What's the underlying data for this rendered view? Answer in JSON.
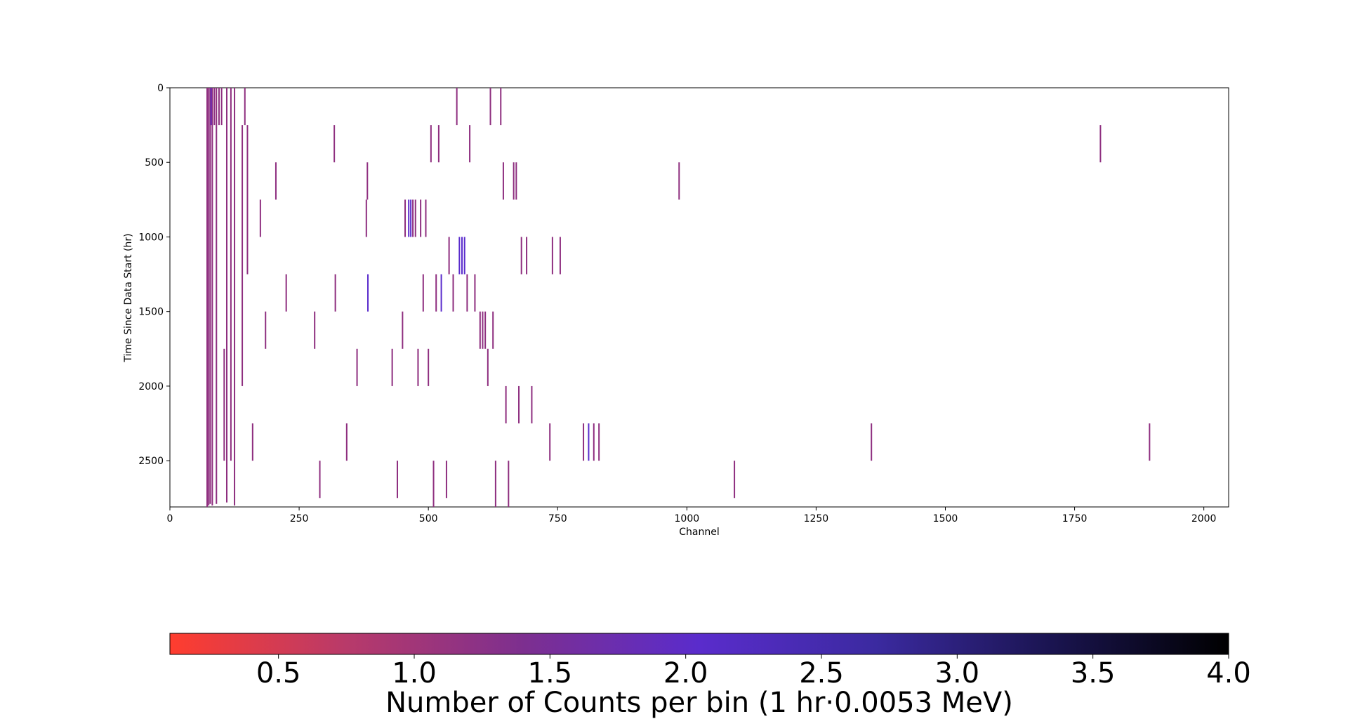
{
  "chart_data": {
    "type": "heatmap",
    "title": "",
    "xlabel": "Channel",
    "ylabel": "Time Since Data Start (hr)",
    "xlim": [
      0,
      2048
    ],
    "ylim": [
      0,
      2810
    ],
    "y_inverted": true,
    "x_ticks": [
      0,
      250,
      500,
      750,
      1000,
      1250,
      1500,
      1750,
      2000
    ],
    "y_ticks": [
      0,
      500,
      1000,
      1500,
      2000,
      2500
    ],
    "colorbar": {
      "label": "Number of Counts per bin (1 hr·0.0053 MeV)",
      "range": [
        0.1,
        4.0
      ],
      "ticks": [
        "0.5",
        "1.0",
        "1.5",
        "2.0",
        "2.5",
        "3.0",
        "3.5",
        "4.0"
      ],
      "tick_values": [
        0.5,
        1.0,
        1.5,
        2.0,
        2.5,
        3.0,
        3.5,
        4.0
      ],
      "colormap_stops": [
        "#ff3d2e",
        "#b83a6a",
        "#7d2f8f",
        "#5a2ccc",
        "#3b2aa0",
        "#1a1450",
        "#000000"
      ]
    },
    "count_color": "#8e2e7f",
    "dense_color": "#5a2ccc",
    "segments": [
      {
        "x": 72,
        "t": [
          0,
          2810
        ],
        "v": 1
      },
      {
        "x": 75,
        "t": [
          0,
          2800
        ],
        "v": 1
      },
      {
        "x": 78,
        "t": [
          0,
          2790
        ],
        "v": 1.2
      },
      {
        "x": 80,
        "t": [
          0,
          250
        ],
        "v": 1.5
      },
      {
        "x": 82,
        "t": [
          0,
          2800
        ],
        "v": 1
      },
      {
        "x": 86,
        "t": [
          0,
          250
        ],
        "v": 1
      },
      {
        "x": 90,
        "t": [
          0,
          2790
        ],
        "v": 1
      },
      {
        "x": 95,
        "t": [
          0,
          250
        ],
        "v": 1
      },
      {
        "x": 100,
        "t": [
          0,
          250
        ],
        "v": 1
      },
      {
        "x": 105,
        "t": [
          1750,
          2500
        ],
        "v": 1
      },
      {
        "x": 110,
        "t": [
          0,
          2780
        ],
        "v": 1
      },
      {
        "x": 118,
        "t": [
          0,
          2500
        ],
        "v": 1
      },
      {
        "x": 125,
        "t": [
          0,
          2800
        ],
        "v": 1
      },
      {
        "x": 140,
        "t": [
          250,
          2000
        ],
        "v": 1
      },
      {
        "x": 145,
        "t": [
          0,
          250
        ],
        "v": 1
      },
      {
        "x": 150,
        "t": [
          250,
          1250
        ],
        "v": 1
      },
      {
        "x": 160,
        "t": [
          2250,
          2500
        ],
        "v": 1
      },
      {
        "x": 175,
        "t": [
          750,
          1000
        ],
        "v": 1
      },
      {
        "x": 185,
        "t": [
          1500,
          1750
        ],
        "v": 1
      },
      {
        "x": 205,
        "t": [
          500,
          750
        ],
        "v": 1
      },
      {
        "x": 225,
        "t": [
          1250,
          1500
        ],
        "v": 1
      },
      {
        "x": 280,
        "t": [
          1500,
          1750
        ],
        "v": 1
      },
      {
        "x": 290,
        "t": [
          2500,
          2750
        ],
        "v": 1
      },
      {
        "x": 318,
        "t": [
          250,
          500
        ],
        "v": 1
      },
      {
        "x": 320,
        "t": [
          1250,
          1500
        ],
        "v": 1
      },
      {
        "x": 342,
        "t": [
          2250,
          2500
        ],
        "v": 1
      },
      {
        "x": 362,
        "t": [
          1750,
          2000
        ],
        "v": 1
      },
      {
        "x": 380,
        "t": [
          750,
          1000
        ],
        "v": 1
      },
      {
        "x": 382,
        "t": [
          500,
          750
        ],
        "v": 1
      },
      {
        "x": 383,
        "t": [
          1250,
          1500
        ],
        "v": 1.6
      },
      {
        "x": 430,
        "t": [
          1750,
          2000
        ],
        "v": 1
      },
      {
        "x": 440,
        "t": [
          2500,
          2750
        ],
        "v": 1
      },
      {
        "x": 450,
        "t": [
          1500,
          1750
        ],
        "v": 1
      },
      {
        "x": 455,
        "t": [
          750,
          1000
        ],
        "v": 1
      },
      {
        "x": 462,
        "t": [
          750,
          1000
        ],
        "v": 2
      },
      {
        "x": 466,
        "t": [
          750,
          1000
        ],
        "v": 1.5
      },
      {
        "x": 470,
        "t": [
          750,
          1000
        ],
        "v": 1
      },
      {
        "x": 475,
        "t": [
          750,
          1000
        ],
        "v": 1.4
      },
      {
        "x": 480,
        "t": [
          1750,
          2000
        ],
        "v": 1
      },
      {
        "x": 485,
        "t": [
          750,
          1000
        ],
        "v": 1.3
      },
      {
        "x": 490,
        "t": [
          1250,
          1500
        ],
        "v": 1
      },
      {
        "x": 495,
        "t": [
          750,
          1000
        ],
        "v": 1
      },
      {
        "x": 500,
        "t": [
          1750,
          2000
        ],
        "v": 1
      },
      {
        "x": 505,
        "t": [
          250,
          500
        ],
        "v": 1
      },
      {
        "x": 510,
        "t": [
          2500,
          2810
        ],
        "v": 1
      },
      {
        "x": 515,
        "t": [
          1250,
          1500
        ],
        "v": 1
      },
      {
        "x": 520,
        "t": [
          250,
          500
        ],
        "v": 1
      },
      {
        "x": 525,
        "t": [
          1250,
          1500
        ],
        "v": 1.5
      },
      {
        "x": 535,
        "t": [
          2500,
          2750
        ],
        "v": 1
      },
      {
        "x": 540,
        "t": [
          1000,
          1250
        ],
        "v": 1.2
      },
      {
        "x": 548,
        "t": [
          1250,
          1500
        ],
        "v": 1
      },
      {
        "x": 555,
        "t": [
          0,
          250
        ],
        "v": 1
      },
      {
        "x": 560,
        "t": [
          1000,
          1250
        ],
        "v": 1.8
      },
      {
        "x": 565,
        "t": [
          1000,
          1250
        ],
        "v": 1.5
      },
      {
        "x": 570,
        "t": [
          1000,
          1250
        ],
        "v": 1.6
      },
      {
        "x": 575,
        "t": [
          1250,
          1500
        ],
        "v": 1
      },
      {
        "x": 580,
        "t": [
          250,
          500
        ],
        "v": 1
      },
      {
        "x": 590,
        "t": [
          1250,
          1500
        ],
        "v": 1
      },
      {
        "x": 600,
        "t": [
          1500,
          1750
        ],
        "v": 1
      },
      {
        "x": 605,
        "t": [
          1500,
          1750
        ],
        "v": 1.3
      },
      {
        "x": 610,
        "t": [
          1500,
          1750
        ],
        "v": 1.2
      },
      {
        "x": 615,
        "t": [
          1750,
          2000
        ],
        "v": 1
      },
      {
        "x": 620,
        "t": [
          0,
          250
        ],
        "v": 1
      },
      {
        "x": 625,
        "t": [
          1500,
          1750
        ],
        "v": 1
      },
      {
        "x": 630,
        "t": [
          2500,
          2810
        ],
        "v": 1
      },
      {
        "x": 640,
        "t": [
          0,
          250
        ],
        "v": 1
      },
      {
        "x": 645,
        "t": [
          500,
          750
        ],
        "v": 1
      },
      {
        "x": 650,
        "t": [
          2000,
          2250
        ],
        "v": 1
      },
      {
        "x": 655,
        "t": [
          2500,
          2810
        ],
        "v": 1
      },
      {
        "x": 665,
        "t": [
          500,
          750
        ],
        "v": 1.2
      },
      {
        "x": 670,
        "t": [
          500,
          750
        ],
        "v": 1
      },
      {
        "x": 675,
        "t": [
          2000,
          2250
        ],
        "v": 1
      },
      {
        "x": 680,
        "t": [
          1000,
          1250
        ],
        "v": 1
      },
      {
        "x": 690,
        "t": [
          1000,
          1250
        ],
        "v": 1
      },
      {
        "x": 700,
        "t": [
          2000,
          2250
        ],
        "v": 1
      },
      {
        "x": 740,
        "t": [
          1000,
          1250
        ],
        "v": 1
      },
      {
        "x": 755,
        "t": [
          1000,
          1250
        ],
        "v": 1
      },
      {
        "x": 735,
        "t": [
          2250,
          2500
        ],
        "v": 1
      },
      {
        "x": 800,
        "t": [
          2250,
          2500
        ],
        "v": 1.3
      },
      {
        "x": 810,
        "t": [
          2250,
          2500
        ],
        "v": 1.5
      },
      {
        "x": 820,
        "t": [
          2250,
          2500
        ],
        "v": 1.4
      },
      {
        "x": 830,
        "t": [
          2250,
          2500
        ],
        "v": 1.2
      },
      {
        "x": 985,
        "t": [
          500,
          750
        ],
        "v": 1
      },
      {
        "x": 1092,
        "t": [
          2500,
          2750
        ],
        "v": 1
      },
      {
        "x": 1357,
        "t": [
          2250,
          2500
        ],
        "v": 1
      },
      {
        "x": 1800,
        "t": [
          250,
          500
        ],
        "v": 1
      },
      {
        "x": 1895,
        "t": [
          2250,
          2500
        ],
        "v": 1
      }
    ]
  }
}
